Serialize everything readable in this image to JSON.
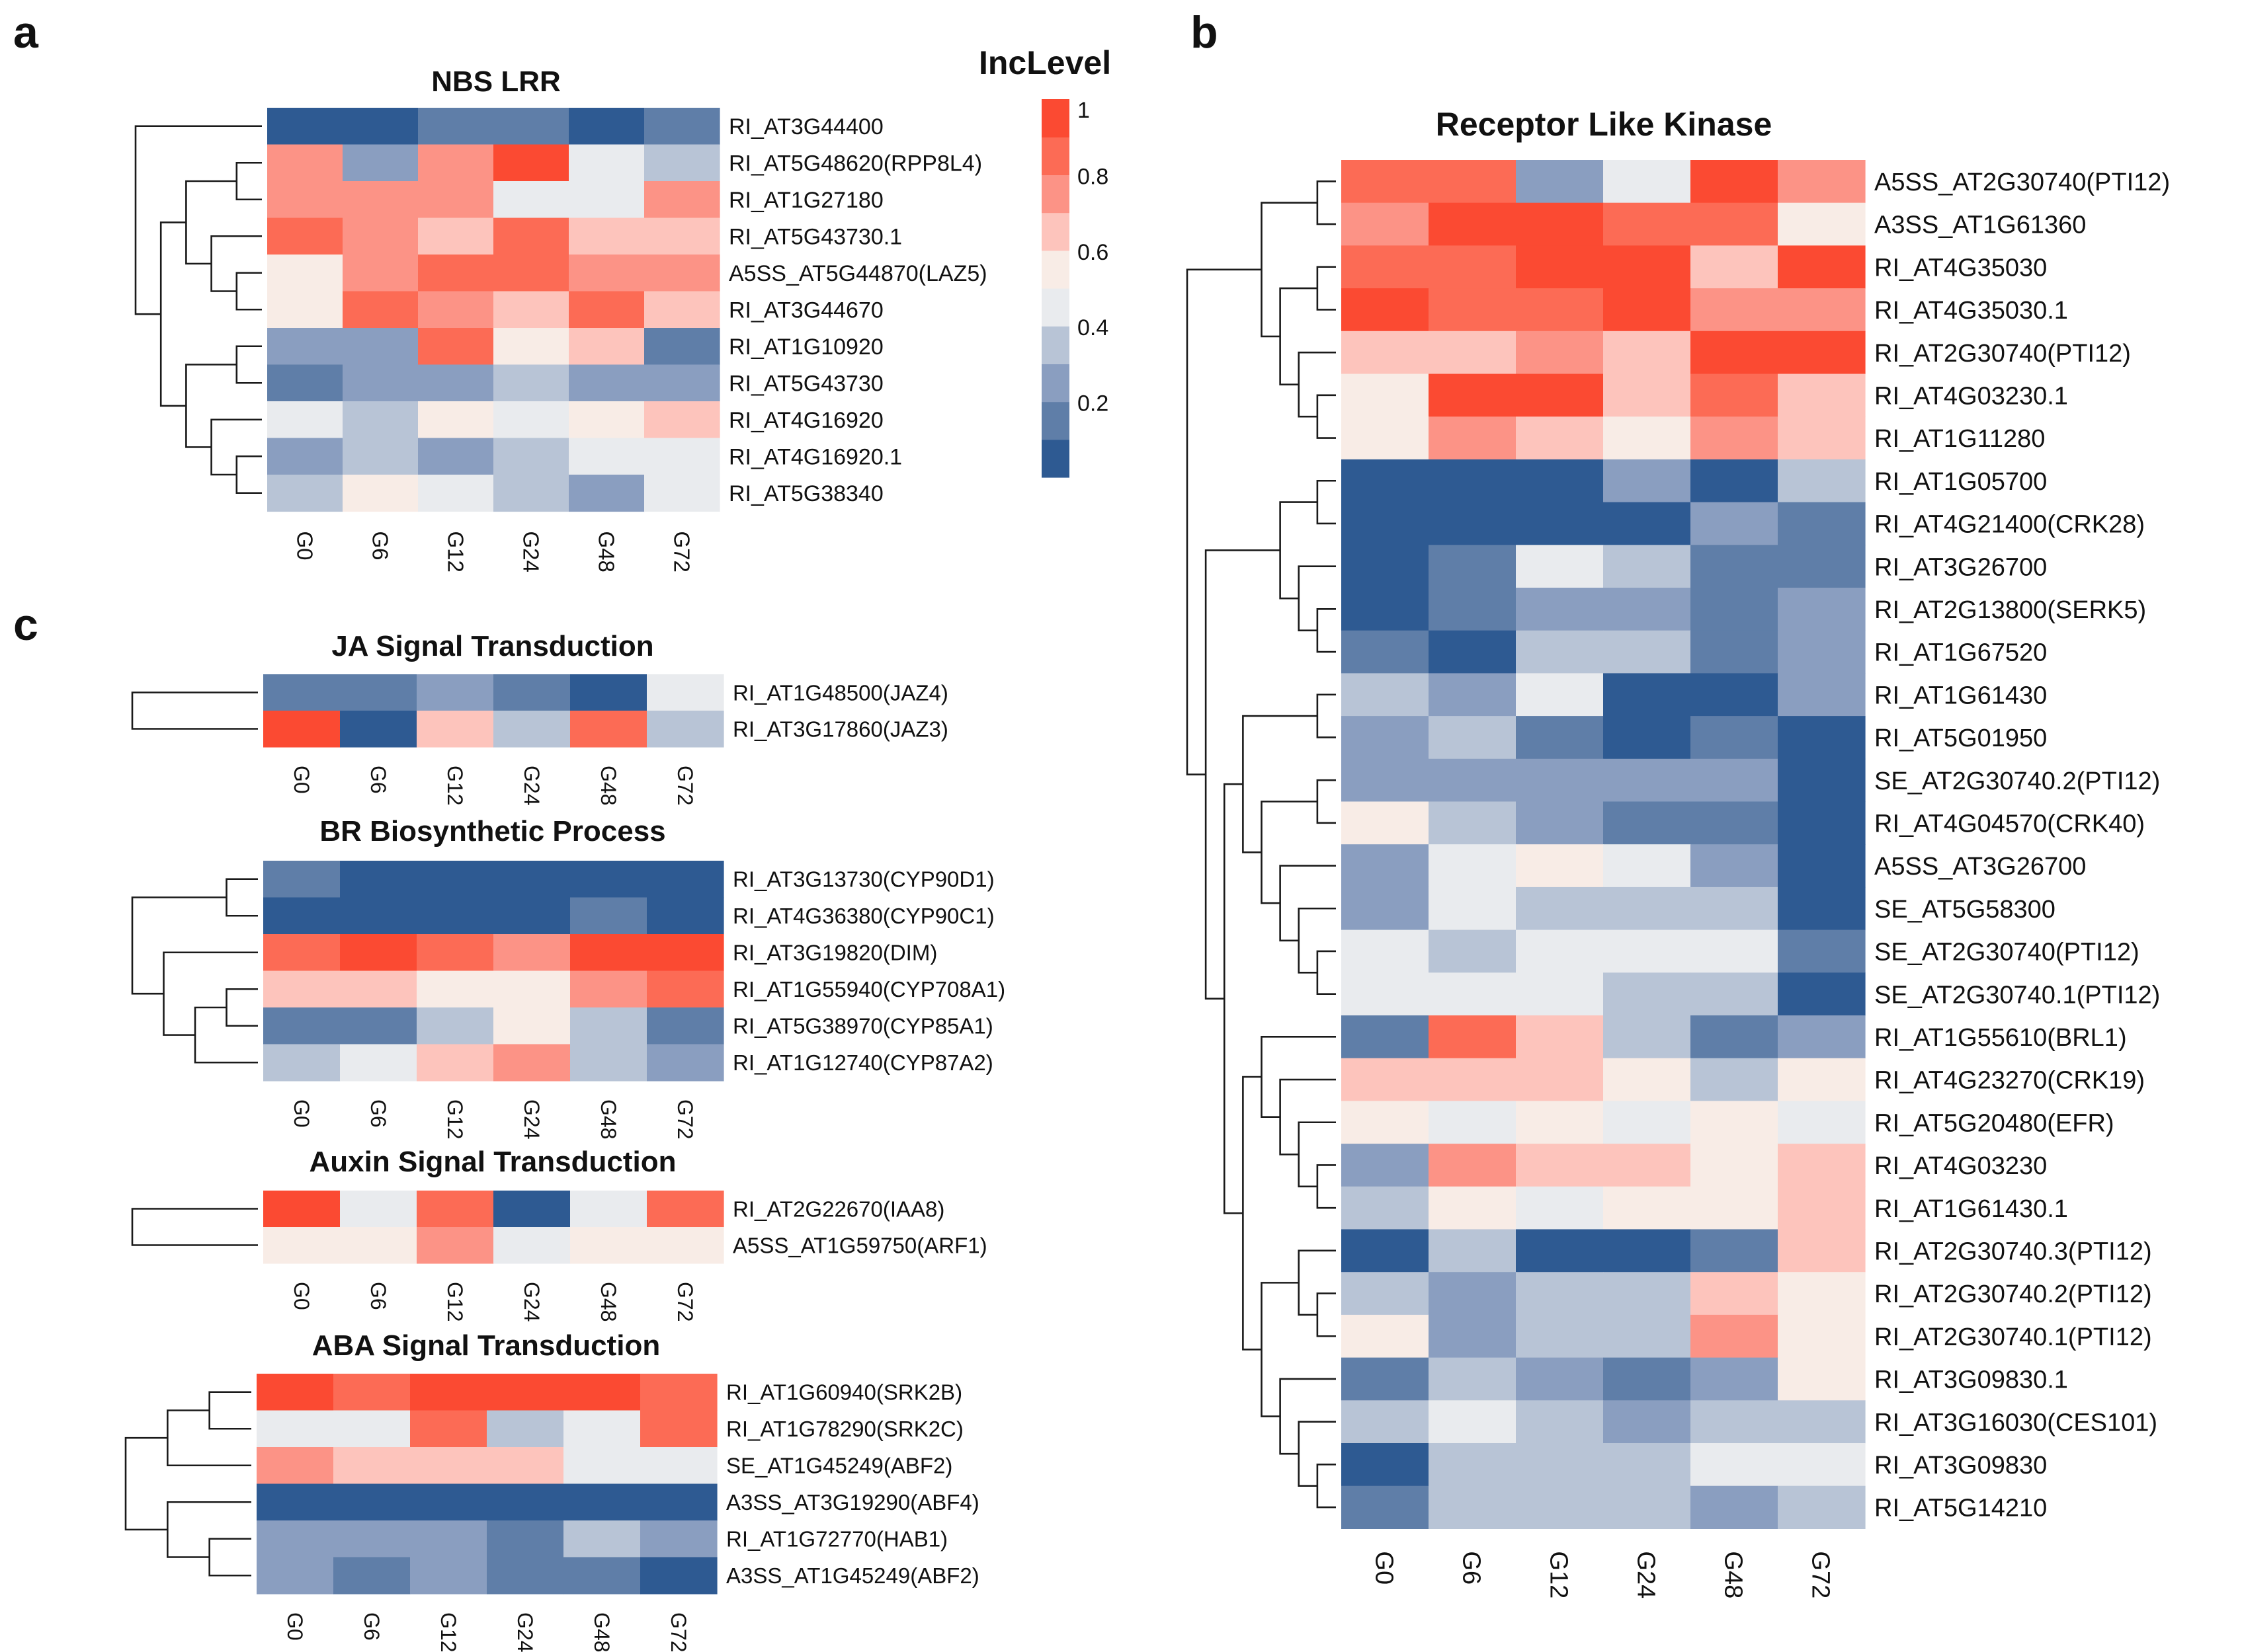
{
  "palette": {
    "stops": [
      "#2e5a92",
      "#5f7ea8",
      "#8a9ec0",
      "#b8c4d6",
      "#e9ebee",
      "#f8ece6",
      "#fdc4bc",
      "#fc9386",
      "#fc6b55",
      "#fb4a32"
    ],
    "dendrogram_color": "#1a1a1a"
  },
  "chart_data": [
    {
      "type": "heatmap",
      "panel": "a",
      "title": "NBS LRR",
      "columns": [
        "G0",
        "G6",
        "G12",
        "G24",
        "G48",
        "G72"
      ],
      "rows": [
        {
          "label": "RI_AT3G44400",
          "values": [
            0.05,
            0.05,
            0.15,
            0.15,
            0.05,
            0.15
          ]
        },
        {
          "label": "RI_AT5G48620(RPP8L4)",
          "values": [
            0.75,
            0.25,
            0.75,
            0.95,
            0.42,
            0.35
          ]
        },
        {
          "label": "RI_AT1G27180",
          "values": [
            0.75,
            0.75,
            0.75,
            0.42,
            0.42,
            0.75
          ]
        },
        {
          "label": "RI_AT5G43730.1",
          "values": [
            0.85,
            0.75,
            0.65,
            0.85,
            0.65,
            0.65
          ]
        },
        {
          "label": "A5SS_AT5G44870(LAZ5)",
          "values": [
            0.55,
            0.75,
            0.85,
            0.85,
            0.75,
            0.75
          ]
        },
        {
          "label": "RI_AT3G44670",
          "values": [
            0.55,
            0.85,
            0.75,
            0.65,
            0.85,
            0.65
          ]
        },
        {
          "label": "RI_AT1G10920",
          "values": [
            0.25,
            0.25,
            0.85,
            0.55,
            0.65,
            0.15
          ]
        },
        {
          "label": "RI_AT5G43730",
          "values": [
            0.15,
            0.25,
            0.25,
            0.35,
            0.25,
            0.25
          ]
        },
        {
          "label": "RI_AT4G16920",
          "values": [
            0.42,
            0.35,
            0.55,
            0.42,
            0.55,
            0.65
          ]
        },
        {
          "label": "RI_AT4G16920.1",
          "values": [
            0.25,
            0.35,
            0.25,
            0.35,
            0.42,
            0.42
          ]
        },
        {
          "label": "RI_AT5G38340",
          "values": [
            0.35,
            0.55,
            0.42,
            0.35,
            0.25,
            0.42
          ]
        }
      ]
    },
    {
      "type": "heatmap",
      "panel": "b",
      "title": "Receptor Like Kinase",
      "columns": [
        "G0",
        "G6",
        "G12",
        "G24",
        "G48",
        "G72"
      ],
      "rows": [
        {
          "label": "A5SS_AT2G30740(PTI12)",
          "values": [
            0.85,
            0.85,
            0.25,
            0.42,
            0.95,
            0.75
          ]
        },
        {
          "label": "A3SS_AT1G61360",
          "values": [
            0.75,
            0.95,
            0.95,
            0.85,
            0.85,
            0.55
          ]
        },
        {
          "label": "RI_AT4G35030",
          "values": [
            0.85,
            0.85,
            0.95,
            0.95,
            0.65,
            0.95
          ]
        },
        {
          "label": "RI_AT4G35030.1",
          "values": [
            0.95,
            0.85,
            0.85,
            0.95,
            0.75,
            0.75
          ]
        },
        {
          "label": "RI_AT2G30740(PTI12)",
          "values": [
            0.65,
            0.65,
            0.75,
            0.65,
            0.95,
            0.95
          ]
        },
        {
          "label": "RI_AT4G03230.1",
          "values": [
            0.55,
            0.95,
            0.95,
            0.65,
            0.85,
            0.65
          ]
        },
        {
          "label": "RI_AT1G11280",
          "values": [
            0.55,
            0.75,
            0.65,
            0.55,
            0.75,
            0.65
          ]
        },
        {
          "label": "RI_AT1G05700",
          "values": [
            0.05,
            0.05,
            0.05,
            0.25,
            0.05,
            0.35
          ]
        },
        {
          "label": "RI_AT4G21400(CRK28)",
          "values": [
            0.05,
            0.05,
            0.05,
            0.05,
            0.25,
            0.15
          ]
        },
        {
          "label": "RI_AT3G26700",
          "values": [
            0.05,
            0.15,
            0.42,
            0.35,
            0.15,
            0.15
          ]
        },
        {
          "label": "RI_AT2G13800(SERK5)",
          "values": [
            0.05,
            0.15,
            0.25,
            0.25,
            0.15,
            0.25
          ]
        },
        {
          "label": "RI_AT1G67520",
          "values": [
            0.15,
            0.05,
            0.35,
            0.35,
            0.15,
            0.25
          ]
        },
        {
          "label": "RI_AT1G61430",
          "values": [
            0.35,
            0.25,
            0.42,
            0.05,
            0.05,
            0.25
          ]
        },
        {
          "label": "RI_AT5G01950",
          "values": [
            0.25,
            0.35,
            0.15,
            0.05,
            0.15,
            0.05
          ]
        },
        {
          "label": "SE_AT2G30740.2(PTI12)",
          "values": [
            0.25,
            0.25,
            0.25,
            0.25,
            0.25,
            0.05
          ]
        },
        {
          "label": "RI_AT4G04570(CRK40)",
          "values": [
            0.55,
            0.35,
            0.25,
            0.15,
            0.15,
            0.05
          ]
        },
        {
          "label": "A5SS_AT3G26700",
          "values": [
            0.25,
            0.42,
            0.55,
            0.42,
            0.25,
            0.05
          ]
        },
        {
          "label": "SE_AT5G58300",
          "values": [
            0.25,
            0.42,
            0.35,
            0.35,
            0.35,
            0.05
          ]
        },
        {
          "label": "SE_AT2G30740(PTI12)",
          "values": [
            0.42,
            0.35,
            0.42,
            0.42,
            0.42,
            0.15
          ]
        },
        {
          "label": "SE_AT2G30740.1(PTI12)",
          "values": [
            0.42,
            0.42,
            0.42,
            0.35,
            0.35,
            0.05
          ]
        },
        {
          "label": "RI_AT1G55610(BRL1)",
          "values": [
            0.15,
            0.85,
            0.65,
            0.35,
            0.15,
            0.25
          ]
        },
        {
          "label": "RI_AT4G23270(CRK19)",
          "values": [
            0.65,
            0.65,
            0.65,
            0.55,
            0.35,
            0.55
          ]
        },
        {
          "label": "RI_AT5G20480(EFR)",
          "values": [
            0.55,
            0.42,
            0.55,
            0.42,
            0.55,
            0.42
          ]
        },
        {
          "label": "RI_AT4G03230",
          "values": [
            0.25,
            0.75,
            0.65,
            0.65,
            0.55,
            0.65
          ]
        },
        {
          "label": "RI_AT1G61430.1",
          "values": [
            0.35,
            0.55,
            0.42,
            0.55,
            0.55,
            0.65
          ]
        },
        {
          "label": "RI_AT2G30740.3(PTI12)",
          "values": [
            0.05,
            0.35,
            0.05,
            0.05,
            0.15,
            0.65
          ]
        },
        {
          "label": "RI_AT2G30740.2(PTI12)",
          "values": [
            0.35,
            0.25,
            0.35,
            0.35,
            0.65,
            0.55
          ]
        },
        {
          "label": "RI_AT2G30740.1(PTI12)",
          "values": [
            0.55,
            0.25,
            0.35,
            0.35,
            0.75,
            0.55
          ]
        },
        {
          "label": "RI_AT3G09830.1",
          "values": [
            0.15,
            0.35,
            0.25,
            0.15,
            0.25,
            0.55
          ]
        },
        {
          "label": "RI_AT3G16030(CES101)",
          "values": [
            0.35,
            0.42,
            0.35,
            0.25,
            0.35,
            0.35
          ]
        },
        {
          "label": "RI_AT3G09830",
          "values": [
            0.05,
            0.35,
            0.35,
            0.35,
            0.42,
            0.42
          ]
        },
        {
          "label": "RI_AT5G14210",
          "values": [
            0.15,
            0.35,
            0.35,
            0.35,
            0.25,
            0.35
          ]
        }
      ]
    },
    {
      "type": "heatmap",
      "panel": "c",
      "title": "JA Signal Transduction",
      "columns": [
        "G0",
        "G6",
        "G12",
        "G24",
        "G48",
        "G72"
      ],
      "rows": [
        {
          "label": "RI_AT1G48500(JAZ4)",
          "values": [
            0.15,
            0.15,
            0.25,
            0.15,
            0.05,
            0.42
          ]
        },
        {
          "label": "RI_AT3G17860(JAZ3)",
          "values": [
            0.95,
            0.05,
            0.65,
            0.35,
            0.85,
            0.35
          ]
        }
      ]
    },
    {
      "type": "heatmap",
      "panel": "c",
      "title": "BR Biosynthetic Process",
      "columns": [
        "G0",
        "G6",
        "G12",
        "G24",
        "G48",
        "G72"
      ],
      "rows": [
        {
          "label": "RI_AT3G13730(CYP90D1)",
          "values": [
            0.15,
            0.05,
            0.05,
            0.05,
            0.05,
            0.05
          ]
        },
        {
          "label": "RI_AT4G36380(CYP90C1)",
          "values": [
            0.05,
            0.05,
            0.05,
            0.05,
            0.15,
            0.05
          ]
        },
        {
          "label": "RI_AT3G19820(DIM)",
          "values": [
            0.85,
            0.95,
            0.85,
            0.75,
            0.95,
            0.95
          ]
        },
        {
          "label": "RI_AT1G55940(CYP708A1)",
          "values": [
            0.65,
            0.65,
            0.55,
            0.55,
            0.75,
            0.85
          ]
        },
        {
          "label": "RI_AT5G38970(CYP85A1)",
          "values": [
            0.15,
            0.15,
            0.35,
            0.55,
            0.35,
            0.15
          ]
        },
        {
          "label": "RI_AT1G12740(CYP87A2)",
          "values": [
            0.35,
            0.42,
            0.65,
            0.75,
            0.35,
            0.25
          ]
        }
      ]
    },
    {
      "type": "heatmap",
      "panel": "c",
      "title": "Auxin Signal Transduction",
      "columns": [
        "G0",
        "G6",
        "G12",
        "G24",
        "G48",
        "G72"
      ],
      "rows": [
        {
          "label": "RI_AT2G22670(IAA8)",
          "values": [
            0.95,
            0.42,
            0.85,
            0.05,
            0.42,
            0.85
          ]
        },
        {
          "label": "A5SS_AT1G59750(ARF1)",
          "values": [
            0.55,
            0.55,
            0.75,
            0.42,
            0.55,
            0.55
          ]
        }
      ]
    },
    {
      "type": "heatmap",
      "panel": "c",
      "title": "ABA Signal Transduction",
      "columns": [
        "G0",
        "G6",
        "G12",
        "G24",
        "G48",
        "G72"
      ],
      "rows": [
        {
          "label": "RI_AT1G60940(SRK2B)",
          "values": [
            0.95,
            0.85,
            0.95,
            0.95,
            0.95,
            0.85
          ]
        },
        {
          "label": "RI_AT1G78290(SRK2C)",
          "values": [
            0.42,
            0.42,
            0.85,
            0.35,
            0.42,
            0.85
          ]
        },
        {
          "label": "SE_AT1G45249(ABF2)",
          "values": [
            0.75,
            0.65,
            0.65,
            0.65,
            0.42,
            0.42
          ]
        },
        {
          "label": "A3SS_AT3G19290(ABF4)",
          "values": [
            0.05,
            0.05,
            0.05,
            0.05,
            0.05,
            0.05
          ]
        },
        {
          "label": "RI_AT1G72770(HAB1)",
          "values": [
            0.25,
            0.25,
            0.25,
            0.15,
            0.35,
            0.25
          ]
        },
        {
          "label": "A3SS_AT1G45249(ABF2)",
          "values": [
            0.25,
            0.15,
            0.25,
            0.15,
            0.15,
            0.05
          ]
        }
      ]
    }
  ],
  "panel_letters": {
    "a": "a",
    "b": "b",
    "c": "c"
  },
  "legend": {
    "title": "IncLevel",
    "range": [
      0,
      1
    ],
    "ticks": [
      "1",
      "0.8",
      "0.6",
      "0.4",
      "0.2"
    ]
  }
}
